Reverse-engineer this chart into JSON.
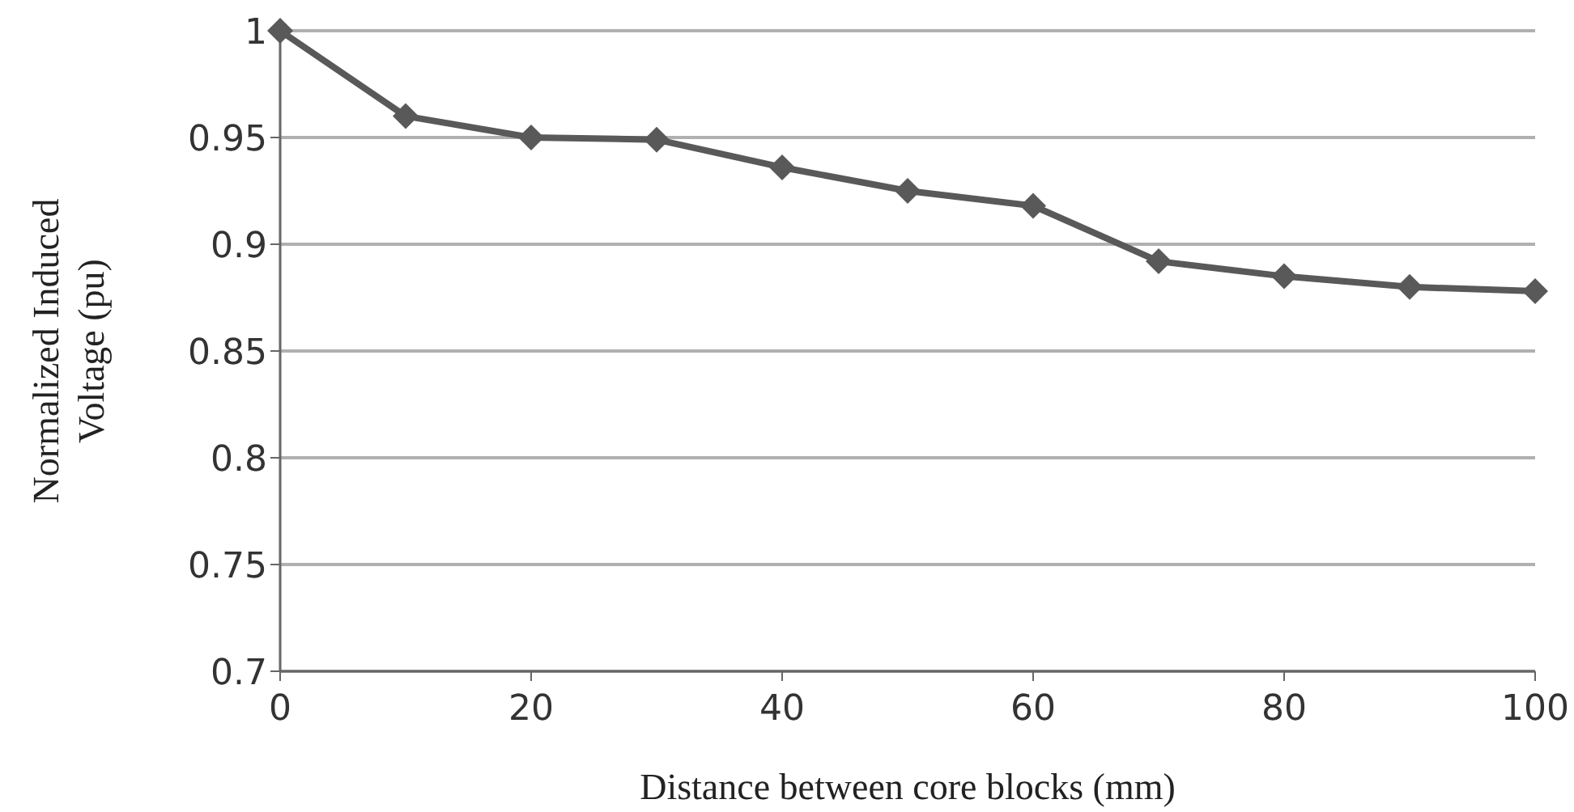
{
  "chart_data": {
    "type": "line",
    "xlabel": "Distance between core blocks (mm)",
    "ylabel": "Normalized Induced Voltage (pu)",
    "x": [
      0,
      10,
      20,
      30,
      40,
      50,
      60,
      70,
      80,
      90,
      100
    ],
    "series": [
      {
        "color": "#595959",
        "values": [
          1,
          0.96,
          0.95,
          0.949,
          0.936,
          0.925,
          0.918,
          0.892,
          0.885,
          0.88,
          0.878
        ]
      }
    ],
    "xlim": [
      0,
      100
    ],
    "xticks": [
      0,
      20,
      40,
      60,
      80,
      100
    ],
    "ylim": [
      0.7,
      1
    ],
    "yticks": [
      0.7,
      0.75,
      0.8,
      0.85,
      0.9,
      0.95,
      1
    ],
    "grid": "y",
    "marker": "diamond",
    "line_style": "solid"
  }
}
